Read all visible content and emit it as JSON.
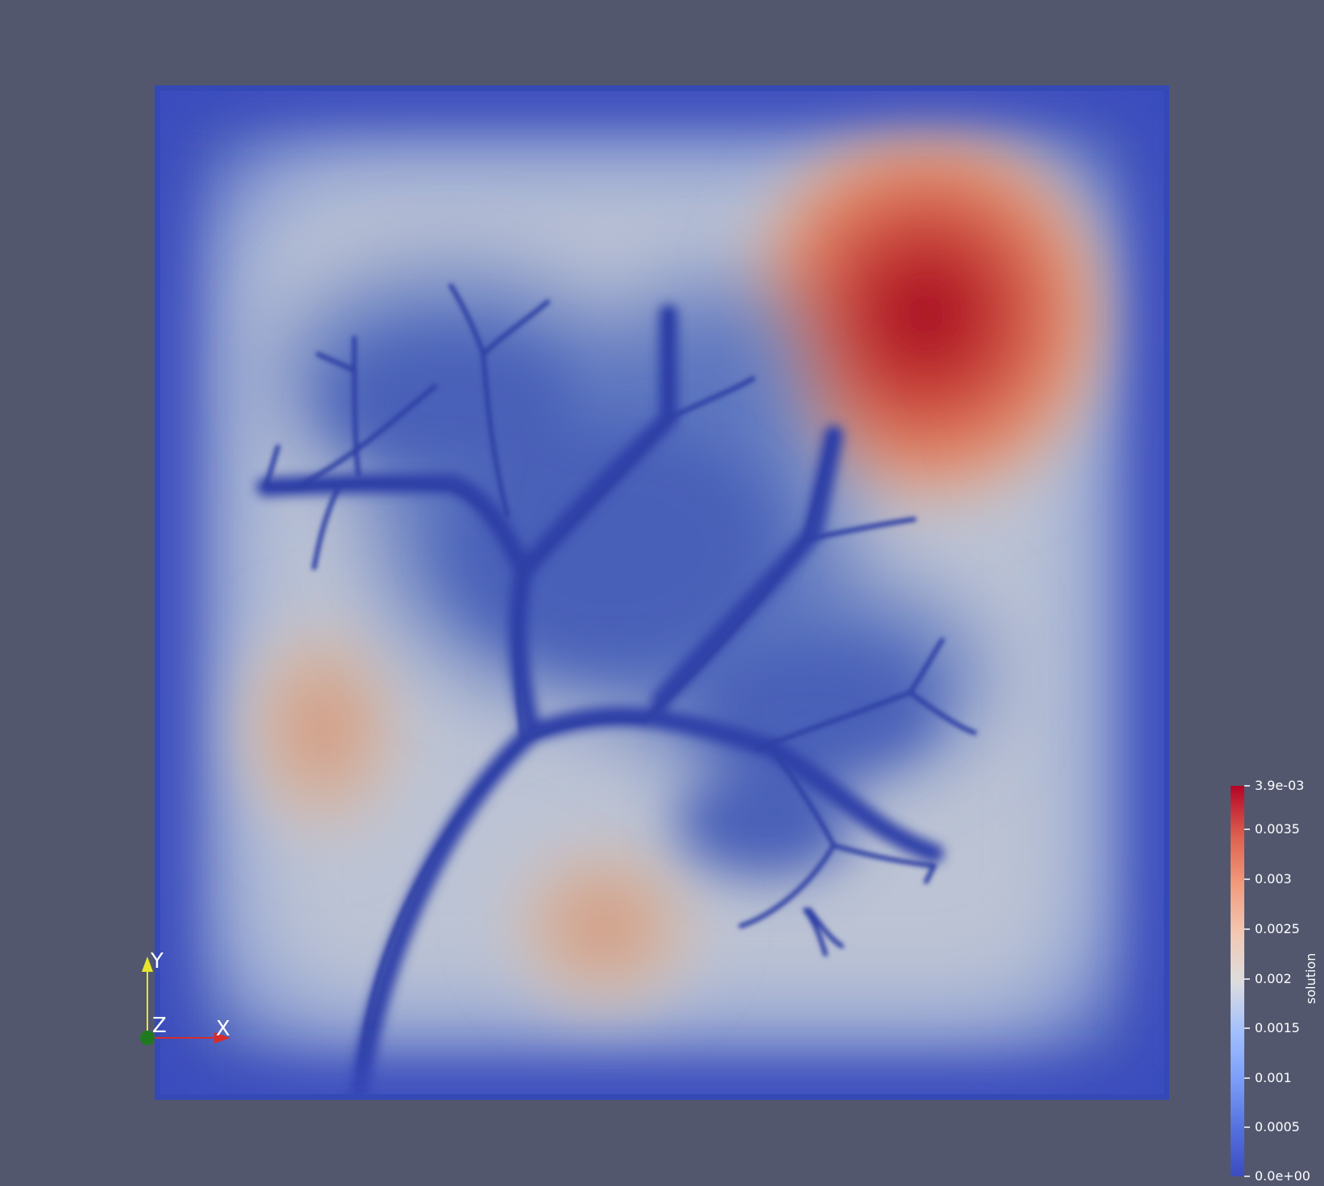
{
  "colorbar": {
    "title": "solution",
    "max_label": "3.9e-03",
    "min_label": "0.0e+00",
    "ticks": [
      "0.0035",
      "0.003",
      "0.0025",
      "0.002",
      "0.0015",
      "0.001",
      "0.0005"
    ],
    "range": [
      0.0,
      0.0039
    ],
    "colors": {
      "low": "#3b4cc0",
      "mid": "#dddddd",
      "high": "#b40426"
    }
  },
  "axes": {
    "x_label": "X",
    "y_label": "Y",
    "z_label": "Z",
    "x_color": "#d62c2c",
    "y_color": "#e6e62c",
    "z_color": "#1f7a1f"
  },
  "colors": {
    "background": "#52576e"
  }
}
